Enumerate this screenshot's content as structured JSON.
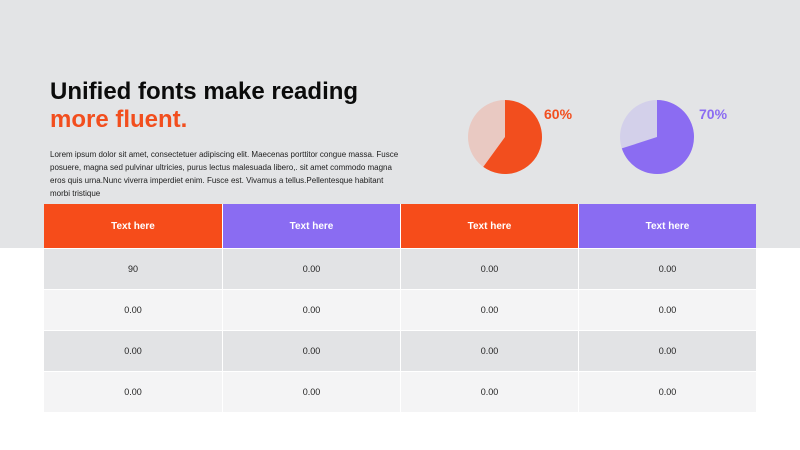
{
  "heading": {
    "line1": "Unified fonts make reading",
    "line2": "more fluent."
  },
  "body_text": "Lorem ipsum dolor sit amet, consectetuer adipiscing elit. Maecenas porttitor congue massa. Fusce posuere, magna sed pulvinar ultricies, purus lectus malesuada libero,. sit amet commodo magna eros quis urna.Nunc viverra imperdiet enim. Fusce est. Vivamus a tellus.Pellentesque habitant morbi tristique",
  "pies": [
    {
      "label": "60%",
      "value": 0.6,
      "color": "#f24e1e",
      "bg_color": "#e9c9c2"
    },
    {
      "label": "70%",
      "value": 0.7,
      "color": "#8b6cf2",
      "bg_color": "#d3d0ea"
    }
  ],
  "colors": {
    "orange": "#f64c1a",
    "purple": "#8a6cf2"
  },
  "table": {
    "headers": [
      "Text here",
      "Text here",
      "Text here",
      "Text here"
    ],
    "rows": [
      [
        "90",
        "0.00",
        "0.00",
        "0.00"
      ],
      [
        "0.00",
        "0.00",
        "0.00",
        "0.00"
      ],
      [
        "0.00",
        "0.00",
        "0.00",
        "0.00"
      ],
      [
        "0.00",
        "0.00",
        "0.00",
        "0.00"
      ]
    ]
  }
}
